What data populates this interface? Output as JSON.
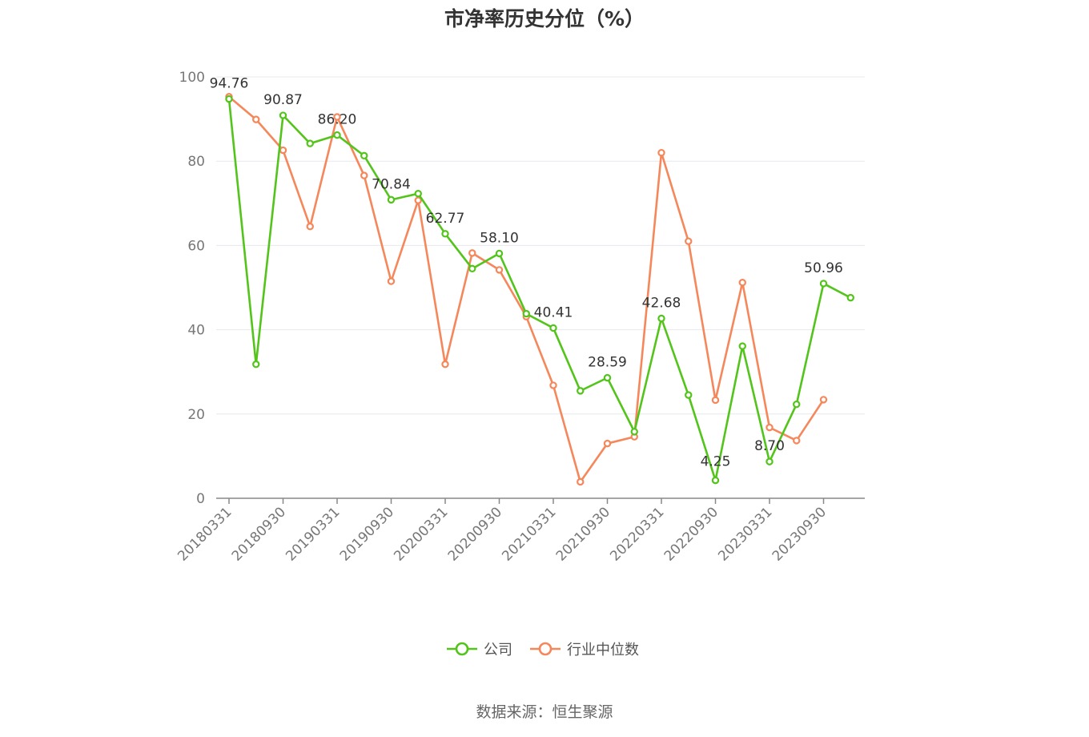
{
  "title": "市净率历史分位（%）",
  "source": "数据来源：恒生聚源",
  "colors": {
    "company": "#52c41a",
    "industry": "#f5875b",
    "grid": "#e6e8ee",
    "axis": "#888888"
  },
  "chart_data": {
    "type": "line",
    "title": "市净率历史分位（%）",
    "xlabel": "",
    "ylabel": "",
    "ylim": [
      0,
      100
    ],
    "yticks": [
      0,
      20,
      40,
      60,
      80,
      100
    ],
    "grid": true,
    "legend_position": "bottom",
    "x": [
      "20180331",
      "20180630",
      "20180930",
      "20181231",
      "20190331",
      "20190630",
      "20190930",
      "20191231",
      "20200331",
      "20200630",
      "20200930",
      "20201231",
      "20210331",
      "20210630",
      "20210930",
      "20211231",
      "20220331",
      "20220630",
      "20220930",
      "20221231",
      "20230331",
      "20230630",
      "20230930",
      "20231231"
    ],
    "x_tick_labels": [
      "20180331",
      "20180930",
      "20190331",
      "20190930",
      "20200331",
      "20200930",
      "20210331",
      "20210930",
      "20220331",
      "20220930",
      "20230331",
      "20230930"
    ],
    "series": [
      {
        "name": "公司",
        "color": "#52c41a",
        "values": [
          94.76,
          31.8,
          90.87,
          84.2,
          86.2,
          81.3,
          70.84,
          72.3,
          62.77,
          54.5,
          58.1,
          43.8,
          40.41,
          25.5,
          28.59,
          15.8,
          42.68,
          24.5,
          4.25,
          36.1,
          8.7,
          22.3,
          50.96,
          47.6
        ],
        "labels": [
          "94.76",
          null,
          "90.87",
          null,
          "86.20",
          null,
          "70.84",
          null,
          "62.77",
          null,
          "58.10",
          null,
          "40.41",
          null,
          "28.59",
          null,
          "42.68",
          null,
          "4.25",
          null,
          "8.70",
          null,
          "50.96",
          null
        ]
      },
      {
        "name": "行业中位数",
        "color": "#f5875b",
        "values": [
          95.3,
          89.9,
          82.6,
          64.5,
          90.5,
          76.6,
          51.5,
          70.7,
          31.8,
          58.2,
          54.2,
          43.1,
          26.8,
          3.9,
          13.0,
          14.6,
          82.0,
          61.0,
          23.3,
          51.2,
          16.8,
          13.7,
          23.4,
          null
        ]
      }
    ]
  }
}
